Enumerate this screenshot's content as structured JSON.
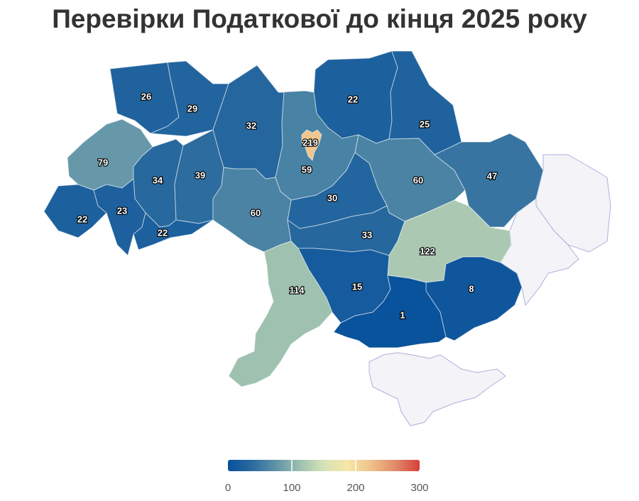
{
  "title": "Перевірки Податкової до кінця 2025 року",
  "colors": {
    "scale": [
      "#08519c",
      "#2a6a9e",
      "#5f93a8",
      "#9dc0b0",
      "#d6e3b8",
      "#f6e7a6",
      "#eec089",
      "#e0896a",
      "#d73f3a"
    ],
    "no_data": "#f4f4f8",
    "no_data_border": "#aab0d8"
  },
  "legend": {
    "min": 0,
    "max": 300,
    "ticks": [
      "0",
      "100",
      "200",
      "300"
    ]
  },
  "regions": [
    {
      "id": "volyn",
      "value": 26,
      "label": "26"
    },
    {
      "id": "rivne",
      "value": 29,
      "label": "29"
    },
    {
      "id": "zhytomyr",
      "value": 32,
      "label": "32"
    },
    {
      "id": "chernihiv",
      "value": 22,
      "label": "22"
    },
    {
      "id": "sumy",
      "value": 25,
      "label": "25"
    },
    {
      "id": "kyiv-city",
      "value": 219,
      "label": "219"
    },
    {
      "id": "lviv",
      "value": 79,
      "label": "79"
    },
    {
      "id": "ternopil",
      "value": 34,
      "label": "34"
    },
    {
      "id": "khmelnytskyi",
      "value": 39,
      "label": "39"
    },
    {
      "id": "kyiv-oblast",
      "value": 59,
      "label": "59"
    },
    {
      "id": "poltava",
      "value": 60,
      "label": "60"
    },
    {
      "id": "kharkiv",
      "value": 47,
      "label": "47"
    },
    {
      "id": "zakarpattia",
      "value": 22,
      "label": "22"
    },
    {
      "id": "ivano-frankivsk",
      "value": 23,
      "label": "23"
    },
    {
      "id": "cherkasy",
      "value": 30,
      "label": "30"
    },
    {
      "id": "chernivtsi",
      "value": 22,
      "label": "22"
    },
    {
      "id": "vinnytsia",
      "value": 60,
      "label": "60"
    },
    {
      "id": "kirovohrad",
      "value": 33,
      "label": "33"
    },
    {
      "id": "dnipropetrovsk",
      "value": 122,
      "label": "122"
    },
    {
      "id": "odesa",
      "value": 114,
      "label": "114"
    },
    {
      "id": "mykolaiv",
      "value": 15,
      "label": "15"
    },
    {
      "id": "zaporizhzhia",
      "value": 8,
      "label": "8"
    },
    {
      "id": "kherson",
      "value": 1,
      "label": "1"
    },
    {
      "id": "luhansk",
      "value": null,
      "label": ""
    },
    {
      "id": "donetsk",
      "value": null,
      "label": ""
    },
    {
      "id": "crimea",
      "value": null,
      "label": ""
    }
  ]
}
